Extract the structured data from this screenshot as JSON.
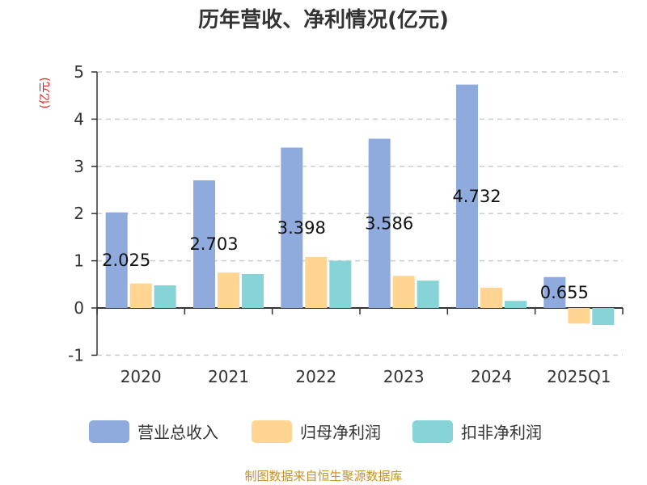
{
  "chart_data": {
    "type": "bar",
    "title": "历年营收、净利情况(亿元)",
    "ylabel": "(亿元)",
    "ylim": [
      -1,
      5
    ],
    "yticks": [
      5,
      4,
      3,
      2,
      1,
      0,
      -1
    ],
    "grid": true,
    "legend_position": "bottom",
    "categories": [
      "2020",
      "2021",
      "2022",
      "2023",
      "2024",
      "2025Q1"
    ],
    "series": [
      {
        "name": "营业总收入",
        "color": "#8faadc",
        "values": [
          2.025,
          2.703,
          3.398,
          3.586,
          4.732,
          0.655
        ]
      },
      {
        "name": "归母净利润",
        "color": "#ffd591",
        "values": [
          0.52,
          0.75,
          1.08,
          0.68,
          0.43,
          -0.33
        ]
      },
      {
        "name": "扣非净利润",
        "color": "#87d4d8",
        "values": [
          0.48,
          0.72,
          1.0,
          0.58,
          0.15,
          -0.36
        ]
      }
    ],
    "data_labels": [
      "2.025",
      "2.703",
      "3.398",
      "3.586",
      "4.732",
      "0.655"
    ]
  },
  "source": "制图数据来自恒生聚源数据库"
}
